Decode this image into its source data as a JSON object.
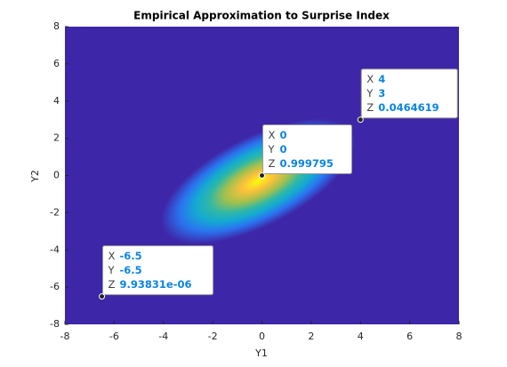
{
  "chart_data": {
    "type": "heatmap",
    "title": "Empirical Approximation to Surprise Index",
    "xlabel": "Y1",
    "ylabel": "Y2",
    "xlim": [
      -8,
      8
    ],
    "ylim": [
      -8,
      8
    ],
    "xticks": [
      -8,
      -6,
      -4,
      -2,
      0,
      2,
      4,
      6,
      8
    ],
    "yticks": [
      -8,
      -6,
      -4,
      -2,
      0,
      2,
      4,
      6,
      8
    ],
    "datatip_fields": [
      "X",
      "Y",
      "Z"
    ],
    "x": [
      4,
      0,
      -6.5
    ],
    "y": [
      3,
      0,
      -6.5
    ],
    "values": [
      0.0464619,
      0.999795,
      9.93831e-06
    ],
    "value_labels": [
      "0.0464619",
      "0.999795",
      "9.93831e-06"
    ]
  }
}
